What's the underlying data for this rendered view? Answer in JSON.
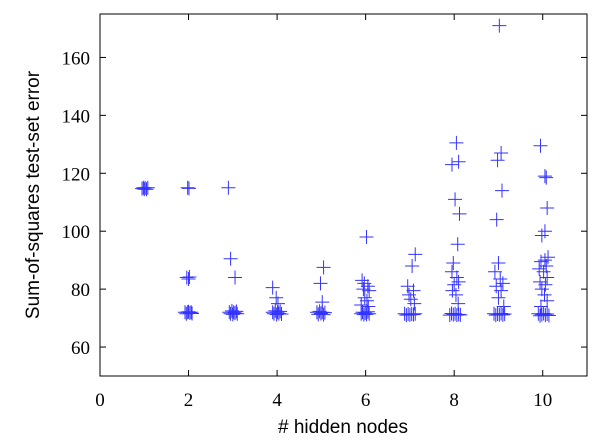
{
  "chart_data": {
    "type": "scatter",
    "title": "",
    "xlabel": "# hidden nodes",
    "ylabel": "Sum-of-squares test-set error",
    "xlim": [
      0,
      11
    ],
    "ylim": [
      50,
      175
    ],
    "xticks": [
      0,
      2,
      4,
      6,
      8,
      10
    ],
    "yticks": [
      60,
      80,
      100,
      120,
      140,
      160
    ],
    "grid": false,
    "marker": "plus",
    "color": "#3333ff",
    "series": [
      {
        "points": [
          [
            0.98,
            115
          ],
          [
            1.0,
            114.5
          ],
          [
            1.02,
            115
          ],
          [
            1.05,
            114.5
          ],
          [
            1.08,
            115
          ],
          [
            0.95,
            114.7
          ],
          [
            1.98,
            115
          ],
          [
            2.01,
            114.8
          ],
          [
            1.96,
            84
          ],
          [
            2.0,
            83.5
          ],
          [
            2.02,
            84.2
          ],
          [
            1.92,
            72
          ],
          [
            1.95,
            71.5
          ],
          [
            1.98,
            72
          ],
          [
            2.0,
            72.2
          ],
          [
            2.03,
            71.8
          ],
          [
            2.06,
            72
          ],
          [
            2.08,
            71.6
          ],
          [
            2.9,
            115
          ],
          [
            2.95,
            90.5
          ],
          [
            3.05,
            84
          ],
          [
            2.92,
            72
          ],
          [
            2.95,
            71.5
          ],
          [
            2.98,
            72.5
          ],
          [
            3.0,
            71.3
          ],
          [
            3.02,
            72
          ],
          [
            3.05,
            71.7
          ],
          [
            3.08,
            72.3
          ],
          [
            3.1,
            71.5
          ],
          [
            3.9,
            80.5
          ],
          [
            3.98,
            77
          ],
          [
            4.02,
            75
          ],
          [
            3.9,
            72
          ],
          [
            3.93,
            71.5
          ],
          [
            3.96,
            72.5
          ],
          [
            3.99,
            71.2
          ],
          [
            4.01,
            72
          ],
          [
            4.04,
            71.6
          ],
          [
            4.07,
            72.3
          ],
          [
            4.1,
            71.4
          ],
          [
            5.05,
            87.5
          ],
          [
            4.98,
            82
          ],
          [
            5.02,
            75.5
          ],
          [
            4.9,
            72
          ],
          [
            4.93,
            71.3
          ],
          [
            4.96,
            72.3
          ],
          [
            4.99,
            71.6
          ],
          [
            5.02,
            72
          ],
          [
            5.05,
            71.2
          ],
          [
            5.08,
            71.9
          ],
          [
            6.02,
            98
          ],
          [
            5.92,
            83
          ],
          [
            5.97,
            82
          ],
          [
            6.05,
            81
          ],
          [
            5.95,
            80
          ],
          [
            6.08,
            79.5
          ],
          [
            5.98,
            77
          ],
          [
            6.03,
            76
          ],
          [
            5.9,
            74.5
          ],
          [
            6.06,
            74
          ],
          [
            5.9,
            71.5
          ],
          [
            5.93,
            72
          ],
          [
            5.96,
            71.2
          ],
          [
            5.99,
            71.8
          ],
          [
            6.02,
            71.3
          ],
          [
            6.05,
            72.2
          ],
          [
            6.08,
            71.5
          ],
          [
            7.12,
            92
          ],
          [
            7.05,
            88
          ],
          [
            6.95,
            81
          ],
          [
            7.08,
            79.5
          ],
          [
            6.98,
            78
          ],
          [
            7.02,
            76.5
          ],
          [
            7.1,
            75
          ],
          [
            6.88,
            71.5
          ],
          [
            6.92,
            71
          ],
          [
            6.96,
            71.4
          ],
          [
            7.0,
            71.1
          ],
          [
            7.04,
            71.4
          ],
          [
            7.08,
            71.2
          ],
          [
            7.12,
            71.5
          ],
          [
            8.05,
            130.5
          ],
          [
            8.1,
            124
          ],
          [
            7.95,
            123
          ],
          [
            8.02,
            111
          ],
          [
            8.12,
            106
          ],
          [
            8.08,
            95.5
          ],
          [
            7.98,
            89
          ],
          [
            7.95,
            86
          ],
          [
            8.06,
            84
          ],
          [
            8.1,
            82.5
          ],
          [
            8.0,
            81.5
          ],
          [
            7.96,
            79.5
          ],
          [
            8.04,
            78
          ],
          [
            8.09,
            75
          ],
          [
            7.9,
            71
          ],
          [
            7.94,
            71.6
          ],
          [
            7.98,
            71.2
          ],
          [
            8.02,
            71.5
          ],
          [
            8.06,
            71
          ],
          [
            8.1,
            71.3
          ],
          [
            8.14,
            71.1
          ],
          [
            9.02,
            171
          ],
          [
            9.06,
            127
          ],
          [
            8.98,
            124.5
          ],
          [
            9.08,
            114
          ],
          [
            8.96,
            104
          ],
          [
            9.0,
            89
          ],
          [
            8.92,
            86
          ],
          [
            9.04,
            83.5
          ],
          [
            9.1,
            82
          ],
          [
            8.95,
            81
          ],
          [
            9.06,
            79.5
          ],
          [
            9.0,
            77
          ],
          [
            9.12,
            74
          ],
          [
            8.9,
            71.5
          ],
          [
            8.94,
            71
          ],
          [
            8.98,
            71.4
          ],
          [
            9.02,
            71.2
          ],
          [
            9.06,
            71.6
          ],
          [
            9.1,
            71.1
          ],
          [
            9.14,
            71.4
          ],
          [
            9.95,
            129.5
          ],
          [
            10.05,
            119
          ],
          [
            10.08,
            118.5
          ],
          [
            10.1,
            108
          ],
          [
            10.05,
            100
          ],
          [
            9.98,
            98.5
          ],
          [
            10.12,
            91
          ],
          [
            10.05,
            90
          ],
          [
            9.96,
            89.5
          ],
          [
            10.08,
            88
          ],
          [
            9.92,
            87
          ],
          [
            10.02,
            86
          ],
          [
            10.1,
            84
          ],
          [
            9.94,
            82.5
          ],
          [
            10.06,
            81.5
          ],
          [
            9.98,
            80
          ],
          [
            10.04,
            78
          ],
          [
            10.1,
            76
          ],
          [
            9.96,
            74
          ],
          [
            9.9,
            71.5
          ],
          [
            9.94,
            70.8
          ],
          [
            9.98,
            71.2
          ],
          [
            10.02,
            71.6
          ],
          [
            10.06,
            71
          ],
          [
            10.1,
            71.4
          ],
          [
            10.14,
            70.9
          ]
        ]
      }
    ]
  }
}
